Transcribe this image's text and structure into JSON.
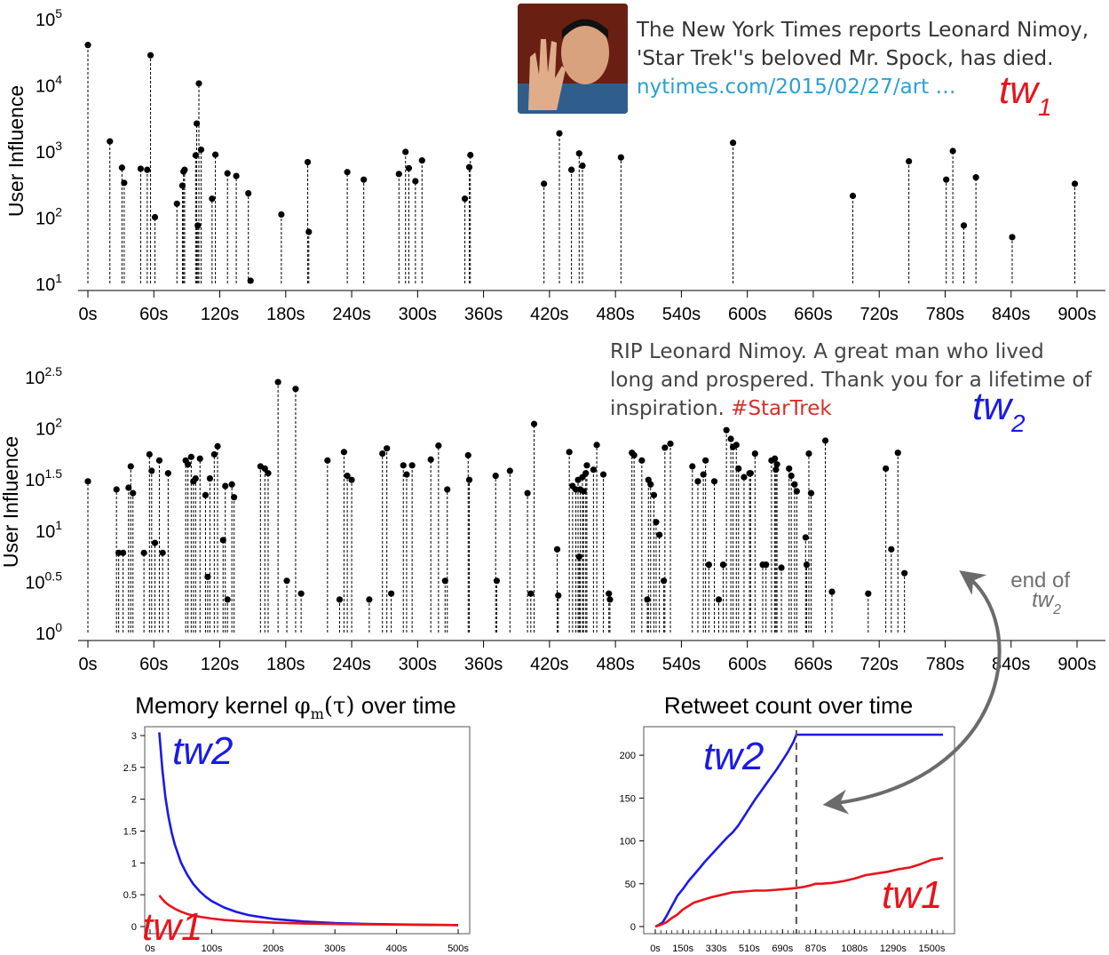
{
  "tweet1": {
    "line1": "The New York Times reports Leonard Nimoy,",
    "line2": "'Star Trek''s beloved Mr. Spock, has died.",
    "link": "nytimes.com/2015/02/27/art",
    "ellipsis": "…",
    "image": "spock-portrait-image"
  },
  "tweet2": {
    "line1": "RIP Leonard Nimoy. A great man who lived",
    "line2": "long and prospered. Thank you for a lifetime of",
    "line3": "inspiration.",
    "hashtag": "#StarTrek"
  },
  "colors": {
    "tw1": "#e8131c",
    "tw2": "#1a1ae6",
    "points": "#000000",
    "arrow": "#707070",
    "hashtag": "#d6302a",
    "link": "#2a9fd6"
  },
  "chart_data": [
    {
      "type": "scatter",
      "style": "stem",
      "ylabel": "User Influence",
      "xlabel": "",
      "yscale": "log10",
      "ylim": [
        10,
        100000
      ],
      "ytick_labels": [
        {
          "base": "10",
          "exp": "1"
        },
        {
          "base": "10",
          "exp": "2"
        },
        {
          "base": "10",
          "exp": "3"
        },
        {
          "base": "10",
          "exp": "4"
        },
        {
          "base": "10",
          "exp": "5"
        }
      ],
      "xlim": [
        0,
        900
      ],
      "xticks": [
        "0s",
        "60s",
        "120s",
        "180s",
        "240s",
        "300s",
        "360s",
        "420s",
        "480s",
        "540s",
        "600s",
        "660s",
        "720s",
        "780s",
        "840s",
        "900s"
      ],
      "annotation": {
        "base": "tw",
        "sub": "1"
      },
      "points": [
        [
          0,
          40000
        ],
        [
          20,
          1400
        ],
        [
          31,
          560
        ],
        [
          33,
          330
        ],
        [
          48,
          540
        ],
        [
          54,
          520
        ],
        [
          57,
          28000
        ],
        [
          61,
          100
        ],
        [
          81,
          160
        ],
        [
          86,
          300
        ],
        [
          87,
          490
        ],
        [
          88,
          520
        ],
        [
          98,
          860
        ],
        [
          99,
          2600
        ],
        [
          100,
          75
        ],
        [
          101,
          10500
        ],
        [
          103,
          1050
        ],
        [
          113,
          190
        ],
        [
          116,
          880
        ],
        [
          127,
          460
        ],
        [
          135,
          420
        ],
        [
          146,
          230
        ],
        [
          148,
          11
        ],
        [
          176,
          110
        ],
        [
          200,
          680
        ],
        [
          201,
          60
        ],
        [
          236,
          480
        ],
        [
          251,
          370
        ],
        [
          283,
          450
        ],
        [
          289,
          970
        ],
        [
          292,
          550
        ],
        [
          298,
          350
        ],
        [
          304,
          720
        ],
        [
          343,
          190
        ],
        [
          347,
          570
        ],
        [
          348,
          870
        ],
        [
          415,
          320
        ],
        [
          429,
          1850
        ],
        [
          440,
          520
        ],
        [
          447,
          920
        ],
        [
          450,
          600
        ],
        [
          485,
          800
        ],
        [
          587,
          1330
        ],
        [
          696,
          210
        ],
        [
          747,
          700
        ],
        [
          781,
          370
        ],
        [
          787,
          1000
        ],
        [
          797,
          75
        ],
        [
          808,
          400
        ],
        [
          841,
          50
        ],
        [
          898,
          320
        ]
      ]
    },
    {
      "type": "scatter",
      "style": "stem",
      "ylabel": "User Influence",
      "xlabel": "",
      "yscale": "log10",
      "ylim": [
        1,
        316.2
      ],
      "ytick_labels": [
        {
          "base": "10",
          "exp": "0"
        },
        {
          "base": "10",
          "exp": "0.5"
        },
        {
          "base": "10",
          "exp": "1"
        },
        {
          "base": "10",
          "exp": "1.5"
        },
        {
          "base": "10",
          "exp": "2"
        },
        {
          "base": "10",
          "exp": "2.5"
        }
      ],
      "xlim": [
        0,
        900
      ],
      "xticks": [
        "0s",
        "60s",
        "120s",
        "180s",
        "240s",
        "300s",
        "360s",
        "420s",
        "480s",
        "540s",
        "600s",
        "660s",
        "720s",
        "780s",
        "840s",
        "900s"
      ],
      "annotation": {
        "base": "tw",
        "sub": "2"
      },
      "end_label": {
        "line1": "end of",
        "base": "tw",
        "sub": "2"
      },
      "points": [
        [
          0,
          30
        ],
        [
          26,
          25
        ],
        [
          28,
          6
        ],
        [
          32,
          6
        ],
        [
          37,
          26
        ],
        [
          39,
          42
        ],
        [
          41,
          23
        ],
        [
          51,
          6
        ],
        [
          56,
          55
        ],
        [
          58,
          38
        ],
        [
          61,
          7.5
        ],
        [
          65,
          48
        ],
        [
          68,
          6
        ],
        [
          73,
          36
        ],
        [
          89,
          48
        ],
        [
          91,
          44
        ],
        [
          94,
          52
        ],
        [
          96,
          30
        ],
        [
          98,
          32
        ],
        [
          102,
          50
        ],
        [
          107,
          22
        ],
        [
          109,
          3.5
        ],
        [
          111,
          32
        ],
        [
          115,
          55
        ],
        [
          118,
          66
        ],
        [
          123,
          8
        ],
        [
          125,
          27
        ],
        [
          127,
          2.1
        ],
        [
          131,
          28
        ],
        [
          133,
          21
        ],
        [
          157,
          42
        ],
        [
          161,
          40
        ],
        [
          164,
          36
        ],
        [
          173,
          280
        ],
        [
          181,
          3.2
        ],
        [
          189,
          240
        ],
        [
          194,
          2.4
        ],
        [
          218,
          48
        ],
        [
          229,
          2.1
        ],
        [
          233,
          58
        ],
        [
          236,
          34
        ],
        [
          240,
          31
        ],
        [
          256,
          2.1
        ],
        [
          268,
          56
        ],
        [
          272,
          63
        ],
        [
          276,
          2.4
        ],
        [
          287,
          43
        ],
        [
          290,
          35
        ],
        [
          295,
          43
        ],
        [
          312,
          49
        ],
        [
          319,
          67
        ],
        [
          325,
          3.2
        ],
        [
          327,
          25
        ],
        [
          346,
          54
        ],
        [
          347,
          31
        ],
        [
          371,
          34
        ],
        [
          372,
          3.2
        ],
        [
          384,
          38
        ],
        [
          400,
          23
        ],
        [
          403,
          2.4
        ],
        [
          406,
          109
        ],
        [
          427,
          6.5
        ],
        [
          428,
          2.3
        ],
        [
          438,
          58
        ],
        [
          441,
          27
        ],
        [
          444,
          25
        ],
        [
          446,
          31
        ],
        [
          447,
          5.5
        ],
        [
          448,
          25
        ],
        [
          450,
          33
        ],
        [
          451,
          24
        ],
        [
          453,
          36
        ],
        [
          454,
          43
        ],
        [
          460,
          39
        ],
        [
          463,
          68
        ],
        [
          469,
          35
        ],
        [
          474,
          2.4
        ],
        [
          475,
          2.1
        ],
        [
          495,
          57
        ],
        [
          497,
          54
        ],
        [
          504,
          48
        ],
        [
          509,
          2.1
        ],
        [
          510,
          31
        ],
        [
          512,
          28
        ],
        [
          515,
          22
        ],
        [
          517,
          12
        ],
        [
          520,
          9
        ],
        [
          524,
          3.2
        ],
        [
          525,
          64
        ],
        [
          530,
          70
        ],
        [
          550,
          42
        ],
        [
          555,
          30
        ],
        [
          560,
          35
        ],
        [
          562,
          48
        ],
        [
          565,
          4.6
        ],
        [
          570,
          30
        ],
        [
          574,
          2.1
        ],
        [
          578,
          4.6
        ],
        [
          581,
          95
        ],
        [
          585,
          78
        ],
        [
          587,
          65
        ],
        [
          590,
          68
        ],
        [
          592,
          40
        ],
        [
          597,
          33
        ],
        [
          602,
          36
        ],
        [
          603,
          36
        ],
        [
          607,
          56
        ],
        [
          614,
          4.6
        ],
        [
          617,
          4.6
        ],
        [
          622,
          48
        ],
        [
          625,
          50
        ],
        [
          626,
          39
        ],
        [
          627,
          44
        ],
        [
          631,
          4.3
        ],
        [
          638,
          40
        ],
        [
          640,
          34
        ],
        [
          643,
          28
        ],
        [
          645,
          24
        ],
        [
          653,
          8.5
        ],
        [
          654,
          4.6
        ],
        [
          656,
          56
        ],
        [
          658,
          23
        ],
        [
          671,
          75
        ],
        [
          677,
          2.5
        ],
        [
          710,
          2.4
        ],
        [
          726,
          40
        ],
        [
          731,
          6.5
        ],
        [
          737,
          57
        ],
        [
          743,
          3.8
        ]
      ]
    },
    {
      "type": "line",
      "title": "Memory kernel",
      "title_math": {
        "sym": "φ",
        "sub": "m",
        "arg": "(τ)"
      },
      "title_suffix": "over time",
      "xlabel": "",
      "ylabel": "",
      "xlim": [
        0,
        500
      ],
      "ylim": [
        0,
        3
      ],
      "xticks": [
        "0s",
        "100s",
        "200s",
        "300s",
        "400s",
        "500s"
      ],
      "yticks": [
        "0",
        "0.5",
        "1",
        "1.5",
        "2",
        "2.5",
        "3"
      ],
      "series": [
        {
          "name": "tw2",
          "color": "#1a1ae6",
          "x": [
            15,
            20,
            25,
            30,
            35,
            40,
            50,
            60,
            70,
            80,
            90,
            100,
            120,
            140,
            160,
            180,
            200,
            250,
            300,
            350,
            400,
            450,
            500
          ],
          "values": [
            3.05,
            2.46,
            2.03,
            1.72,
            1.48,
            1.29,
            1.01,
            0.82,
            0.67,
            0.56,
            0.47,
            0.4,
            0.3,
            0.23,
            0.18,
            0.15,
            0.12,
            0.08,
            0.055,
            0.042,
            0.033,
            0.027,
            0.022
          ]
        },
        {
          "name": "tw1",
          "color": "#e8131c",
          "x": [
            15,
            20,
            25,
            30,
            40,
            50,
            60,
            70,
            80,
            100,
            120,
            150,
            200,
            250,
            300,
            400,
            500
          ],
          "values": [
            0.49,
            0.43,
            0.38,
            0.34,
            0.28,
            0.235,
            0.2,
            0.175,
            0.155,
            0.125,
            0.103,
            0.082,
            0.061,
            0.048,
            0.04,
            0.03,
            0.024
          ]
        }
      ]
    },
    {
      "type": "line",
      "title": "Retweet count over time",
      "xlabel": "",
      "ylabel": "",
      "xlim": [
        0,
        1560
      ],
      "ylim": [
        0,
        225
      ],
      "xticks": [
        "0s",
        "150s",
        "330s",
        "510s",
        "690s",
        "870s",
        "1080s",
        "1290s",
        "1500s"
      ],
      "xtick_values": [
        0,
        150,
        330,
        510,
        690,
        870,
        1080,
        1290,
        1500
      ],
      "yticks": [
        "0",
        "50",
        "100",
        "150",
        "200"
      ],
      "end_marker_x": 765,
      "series": [
        {
          "name": "tw2",
          "color": "#1a1ae6",
          "x": [
            0,
            20,
            40,
            60,
            80,
            100,
            120,
            150,
            180,
            200,
            240,
            270,
            300,
            330,
            360,
            390,
            420,
            450,
            480,
            510,
            540,
            570,
            600,
            630,
            660,
            690,
            720,
            750,
            765,
            800,
            1000,
            1200,
            1400,
            1560
          ],
          "values": [
            0,
            2,
            5,
            12,
            20,
            28,
            36,
            44,
            53,
            58,
            68,
            76,
            83,
            90,
            97,
            104,
            110,
            118,
            128,
            138,
            148,
            157,
            166,
            175,
            184,
            194,
            204,
            216,
            224,
            224,
            224,
            224,
            224,
            224
          ]
        },
        {
          "name": "tw1",
          "color": "#e8131c",
          "x": [
            0,
            30,
            60,
            90,
            120,
            150,
            180,
            210,
            240,
            270,
            300,
            360,
            420,
            480,
            540,
            600,
            660,
            720,
            765,
            800,
            840,
            870,
            900,
            960,
            1020,
            1080,
            1140,
            1200,
            1260,
            1320,
            1380,
            1440,
            1500,
            1560
          ],
          "values": [
            0,
            2,
            5,
            10,
            14,
            20,
            24,
            28,
            30,
            32,
            34,
            37,
            40,
            41,
            42,
            42,
            43,
            44,
            45,
            46,
            48,
            50,
            50,
            51,
            53,
            56,
            60,
            62,
            64,
            67,
            69,
            73,
            78,
            80
          ]
        }
      ]
    }
  ]
}
